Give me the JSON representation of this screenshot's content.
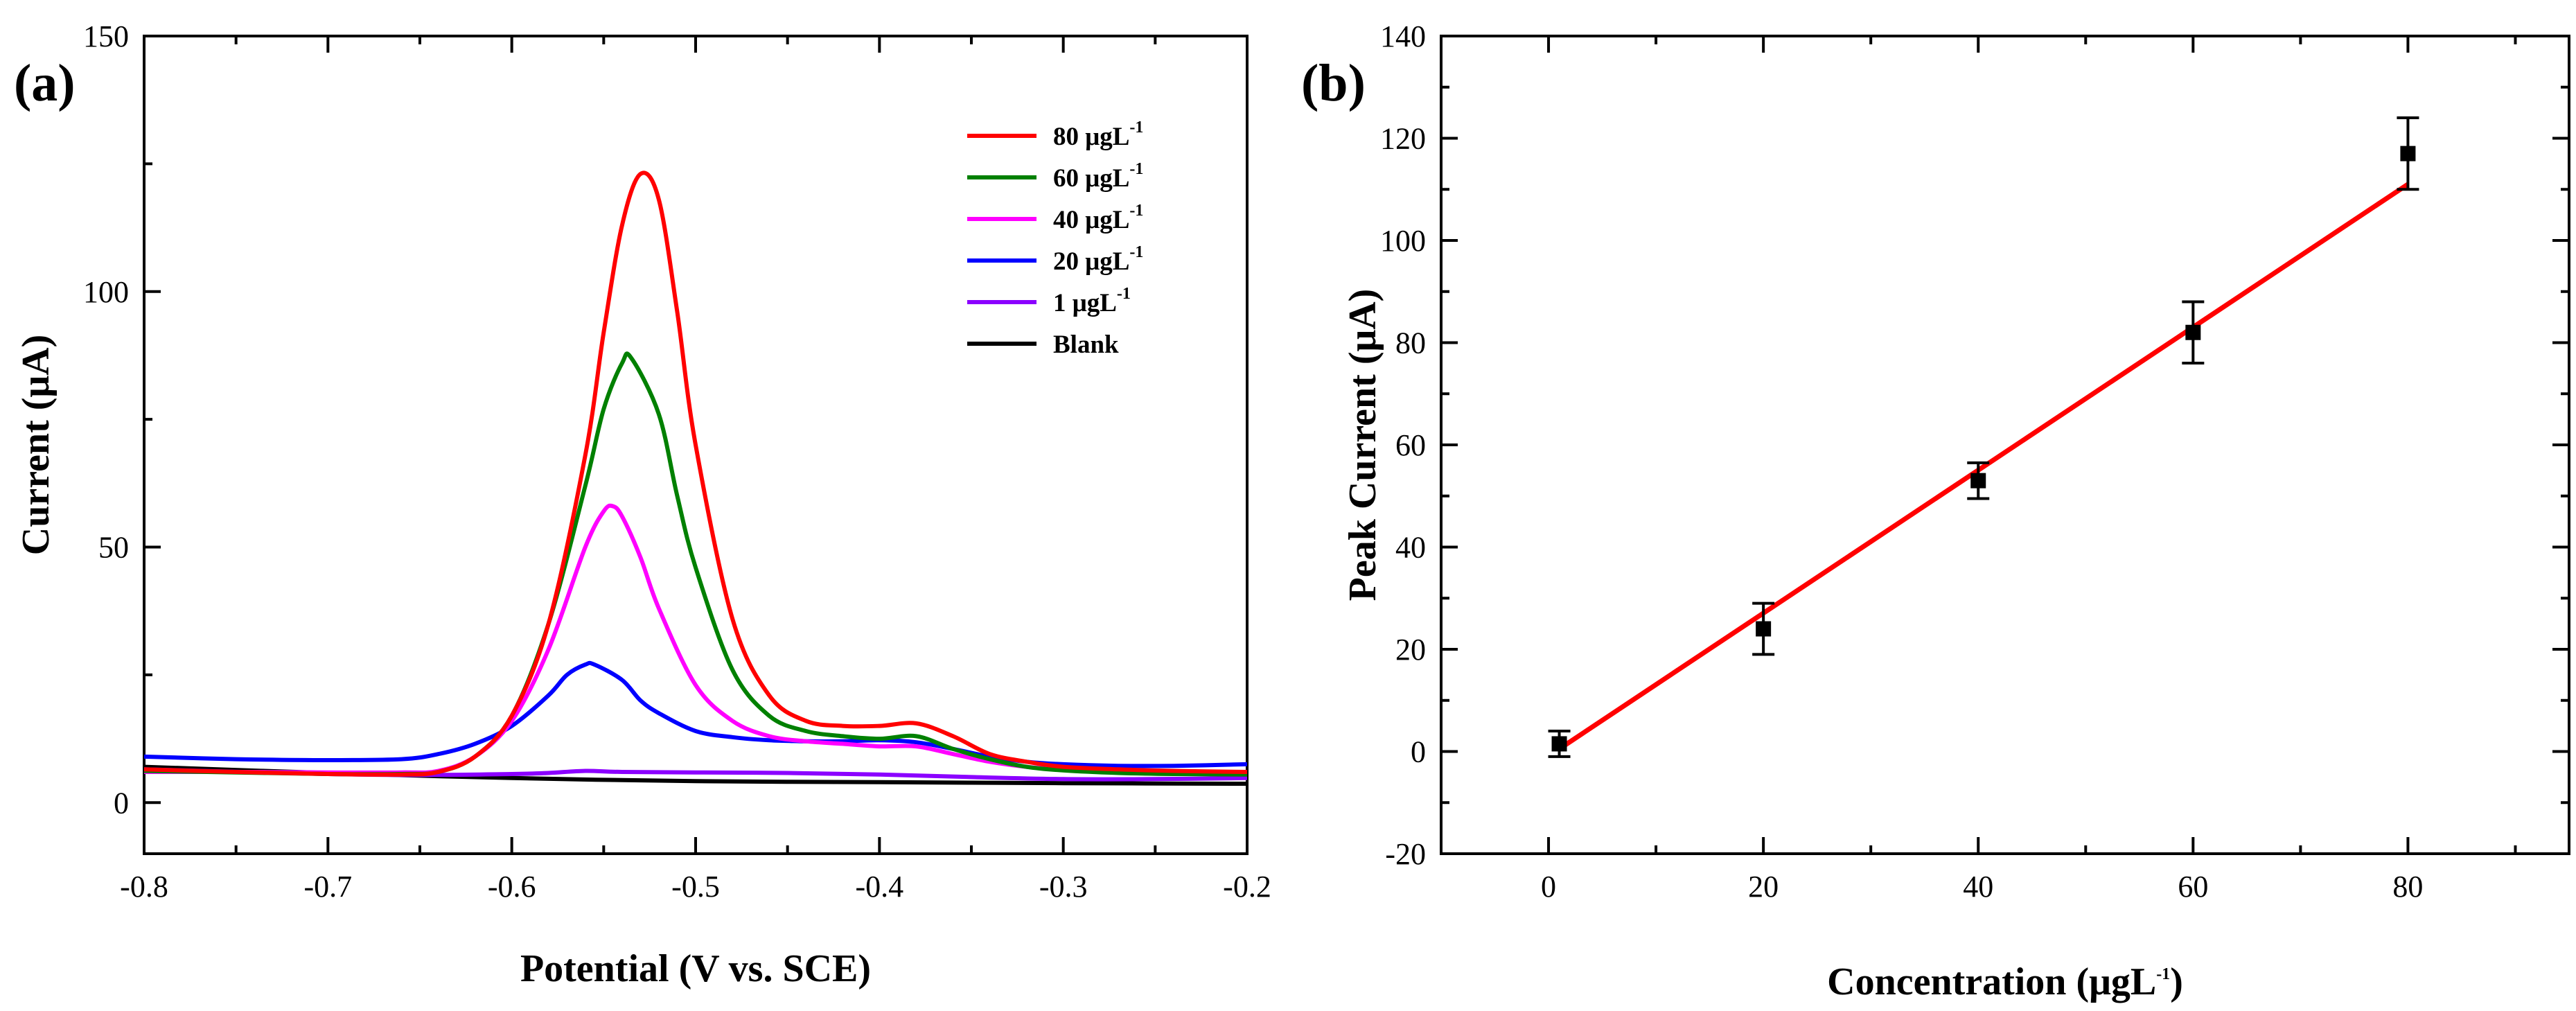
{
  "chart_data": [
    {
      "panel": "(a)",
      "type": "line",
      "xlabel": "Potential (V vs. SCE)",
      "ylabel": "Current (μA)",
      "xlim": [
        -0.8,
        -0.2
      ],
      "ylim": [
        -10,
        150
      ],
      "x_ticks": [
        "-0.8",
        "-0.7",
        "-0.6",
        "-0.5",
        "-0.4",
        "-0.3",
        "-0.2"
      ],
      "y_ticks": [
        "0",
        "50",
        "100",
        "150"
      ],
      "legend_position": "top-right",
      "series": [
        {
          "name": "80 μgL",
          "unit_sup": "-1",
          "color": "#ff0000",
          "x": [
            -0.8,
            -0.75,
            -0.7,
            -0.66,
            -0.64,
            -0.62,
            -0.6,
            -0.58,
            -0.56,
            -0.55,
            -0.54,
            -0.53,
            -0.52,
            -0.51,
            -0.5,
            -0.48,
            -0.46,
            -0.44,
            -0.42,
            -0.4,
            -0.38,
            -0.36,
            -0.34,
            -0.32,
            -0.3,
            -0.27,
            -0.24,
            -0.2
          ],
          "values": [
            6.5,
            6.0,
            5.6,
            5.5,
            6,
            9,
            17,
            35,
            68,
            92,
            113,
            123,
            118,
            96,
            70,
            36,
            21,
            16,
            15,
            15,
            15.5,
            13,
            9.5,
            8,
            7,
            6.5,
            6.2,
            6.0
          ]
        },
        {
          "name": "60 μgL",
          "unit_sup": "-1",
          "color": "#008000",
          "x": [
            -0.8,
            -0.75,
            -0.7,
            -0.66,
            -0.64,
            -0.62,
            -0.6,
            -0.58,
            -0.56,
            -0.55,
            -0.54,
            -0.535,
            -0.52,
            -0.51,
            -0.5,
            -0.48,
            -0.46,
            -0.44,
            -0.42,
            -0.4,
            -0.38,
            -0.36,
            -0.34,
            -0.32,
            -0.3,
            -0.27,
            -0.24,
            -0.2
          ],
          "values": [
            6.2,
            5.9,
            5.6,
            5.6,
            6,
            9,
            17,
            35,
            62,
            77,
            86,
            87,
            76,
            60,
            46,
            26,
            17,
            14,
            13,
            12.5,
            13,
            10.5,
            8.5,
            7,
            6.3,
            5.8,
            5.6,
            5.5
          ]
        },
        {
          "name": "40 μgL",
          "unit_sup": "-1",
          "color": "#ff00ff",
          "x": [
            -0.8,
            -0.75,
            -0.7,
            -0.66,
            -0.64,
            -0.62,
            -0.6,
            -0.58,
            -0.56,
            -0.55,
            -0.545,
            -0.54,
            -0.53,
            -0.52,
            -0.5,
            -0.48,
            -0.46,
            -0.44,
            -0.42,
            -0.4,
            -0.38,
            -0.36,
            -0.34,
            -0.32,
            -0.3,
            -0.27,
            -0.24,
            -0.2
          ],
          "values": [
            6.0,
            6.0,
            5.9,
            5.9,
            6.2,
            9,
            16,
            30,
            50,
            57,
            58,
            56,
            48,
            38,
            23,
            16,
            13,
            12,
            11.5,
            11,
            11,
            9.5,
            8,
            7,
            6.5,
            6.2,
            6.0,
            5.9
          ]
        },
        {
          "name": "20 μgL",
          "unit_sup": "-1",
          "color": "#0000ff",
          "x": [
            -0.8,
            -0.75,
            -0.7,
            -0.66,
            -0.64,
            -0.62,
            -0.6,
            -0.58,
            -0.57,
            -0.56,
            -0.555,
            -0.54,
            -0.53,
            -0.52,
            -0.5,
            -0.48,
            -0.46,
            -0.44,
            -0.42,
            -0.4,
            -0.38,
            -0.36,
            -0.34,
            -0.32,
            -0.3,
            -0.27,
            -0.24,
            -0.2
          ],
          "values": [
            9.0,
            8.5,
            8.3,
            8.5,
            9.5,
            11.5,
            15,
            21,
            25,
            27,
            27,
            24,
            20,
            17.5,
            14,
            12.8,
            12.2,
            12.0,
            12.0,
            12.2,
            11.8,
            10.5,
            9,
            8,
            7.5,
            7.2,
            7.2,
            7.5
          ]
        },
        {
          "name": "1 μgL",
          "unit_sup": "-1",
          "color": "#8b00ff",
          "x": [
            -0.8,
            -0.7,
            -0.65,
            -0.6,
            -0.58,
            -0.56,
            -0.54,
            -0.5,
            -0.45,
            -0.4,
            -0.35,
            -0.3,
            -0.25,
            -0.2
          ],
          "values": [
            6.5,
            5.6,
            5.4,
            5.6,
            5.8,
            6.2,
            6.0,
            5.9,
            5.8,
            5.5,
            5.0,
            4.6,
            4.6,
            4.8
          ]
        },
        {
          "name": "Blank",
          "unit_sup": "",
          "color": "#000000",
          "x": [
            -0.8,
            -0.7,
            -0.6,
            -0.5,
            -0.4,
            -0.3,
            -0.2
          ],
          "values": [
            7.0,
            5.8,
            4.8,
            4.2,
            4.0,
            3.8,
            3.7
          ]
        }
      ]
    },
    {
      "panel": "(b)",
      "type": "scatter",
      "xlabel": "Concentration (μgL",
      "xlabel_sup": "-1",
      "xlabel_suffix": ")",
      "ylabel": "Peak Current (μA)",
      "xlim": [
        -10,
        95
      ],
      "ylim": [
        -20,
        140
      ],
      "x_ticks": [
        "0",
        "20",
        "40",
        "60",
        "80"
      ],
      "y_ticks": [
        "-20",
        "0",
        "20",
        "40",
        "60",
        "80",
        "100",
        "120",
        "140"
      ],
      "points": {
        "x": [
          1,
          20,
          40,
          60,
          80
        ],
        "values": [
          1.5,
          24,
          53,
          82,
          117
        ],
        "error": [
          2.5,
          5,
          3.5,
          6,
          7
        ],
        "color": "#000000"
      },
      "fit_line": {
        "x": [
          1,
          80
        ],
        "values": [
          0.5,
          111
        ],
        "color": "#ff0000"
      }
    }
  ]
}
